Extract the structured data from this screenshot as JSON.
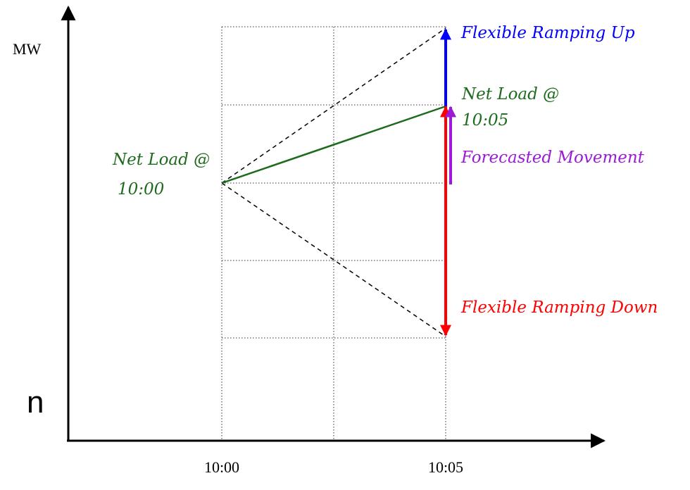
{
  "axes": {
    "y_label": "MW",
    "x_ticks": [
      "10:00",
      "10:05"
    ]
  },
  "labels": {
    "net_load_start": [
      "Net Load @",
      "10:00"
    ],
    "net_load_end": [
      "Net Load @",
      "10:05"
    ],
    "flex_up": "Flexible Ramping Up",
    "flex_down": "Flexible Ramping Down",
    "forecast": "Forecasted Movement"
  },
  "stray_text": "n",
  "colors": {
    "axis": "#000000",
    "grid": "#333333",
    "net_load": "#1e6b1e",
    "flex_up": "#0000ff",
    "flex_down": "#ff0000",
    "forecast": "#9a1ad6",
    "label_green": "#1e6b1e"
  }
}
